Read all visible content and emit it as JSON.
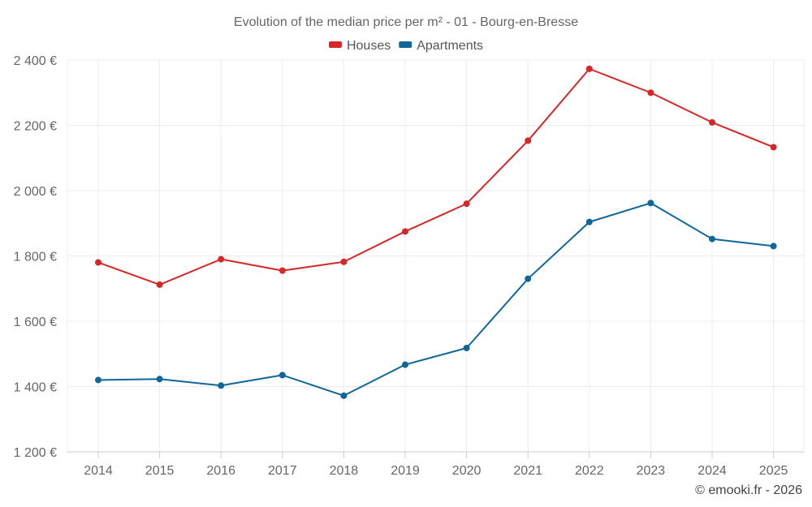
{
  "chart_data": {
    "type": "line",
    "title": "Evolution of the median price per m² - 01 - Bourg-en-Bresse",
    "categories": [
      "2014",
      "2015",
      "2016",
      "2017",
      "2018",
      "2019",
      "2020",
      "2021",
      "2022",
      "2023",
      "2024",
      "2025"
    ],
    "series": [
      {
        "name": "Houses",
        "color": "#d62728",
        "values": [
          1780,
          1712,
          1790,
          1755,
          1782,
          1875,
          1960,
          2153,
          2373,
          2300,
          2209,
          2133
        ]
      },
      {
        "name": "Apartments",
        "color": "#0e6699",
        "values": [
          1420,
          1423,
          1403,
          1435,
          1372,
          1467,
          1518,
          1730,
          1904,
          1962,
          1852,
          1830
        ]
      }
    ],
    "ylim": [
      1200,
      2400
    ],
    "y_ticks": [
      1200,
      1400,
      1600,
      1800,
      2000,
      2200,
      2400
    ],
    "y_tick_labels": [
      "1 200 €",
      "1 400 €",
      "1 600 €",
      "1 800 €",
      "2 000 €",
      "2 200 €",
      "2 400 €"
    ],
    "xlabel": "",
    "ylabel": "",
    "grid": true,
    "legend_position": "top-center"
  },
  "credit": "© emooki.fr - 2026"
}
